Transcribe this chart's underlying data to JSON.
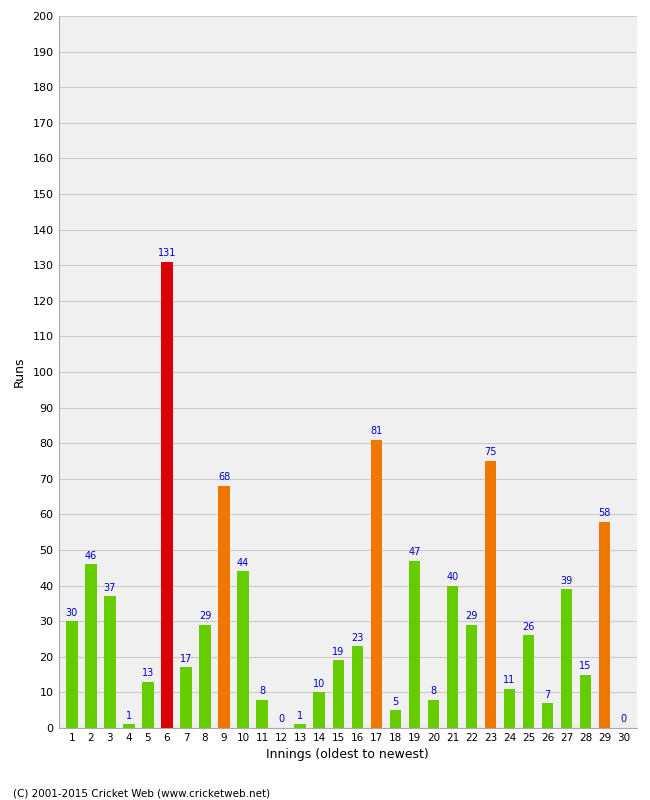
{
  "innings": [
    1,
    2,
    3,
    4,
    5,
    6,
    7,
    8,
    9,
    10,
    11,
    12,
    13,
    14,
    15,
    16,
    17,
    18,
    19,
    20,
    21,
    22,
    23,
    24,
    25,
    26,
    27,
    28,
    29,
    30
  ],
  "values": [
    30,
    46,
    37,
    1,
    13,
    131,
    17,
    29,
    68,
    44,
    8,
    0,
    1,
    10,
    19,
    23,
    81,
    5,
    47,
    8,
    40,
    29,
    75,
    11,
    26,
    7,
    39,
    15,
    58,
    0
  ],
  "bar_colors": [
    "#66cc00",
    "#66cc00",
    "#66cc00",
    "#66cc00",
    "#66cc00",
    "#dd0000",
    "#66cc00",
    "#66cc00",
    "#ee7700",
    "#66cc00",
    "#66cc00",
    "#66cc00",
    "#66cc00",
    "#66cc00",
    "#66cc00",
    "#66cc00",
    "#ee7700",
    "#66cc00",
    "#66cc00",
    "#66cc00",
    "#66cc00",
    "#66cc00",
    "#ee7700",
    "#66cc00",
    "#66cc00",
    "#66cc00",
    "#66cc00",
    "#66cc00",
    "#ee7700",
    "#66cc00"
  ],
  "xlabel": "Innings (oldest to newest)",
  "ylabel": "Runs",
  "ylim": [
    0,
    200
  ],
  "yticks": [
    0,
    10,
    20,
    30,
    40,
    50,
    60,
    70,
    80,
    90,
    100,
    110,
    120,
    130,
    140,
    150,
    160,
    170,
    180,
    190,
    200
  ],
  "background_color": "#ffffff",
  "plot_bg_color": "#f0f0f0",
  "grid_color": "#cccccc",
  "label_color": "#0000cc",
  "footer": "(C) 2001-2015 Cricket Web (www.cricketweb.net)"
}
